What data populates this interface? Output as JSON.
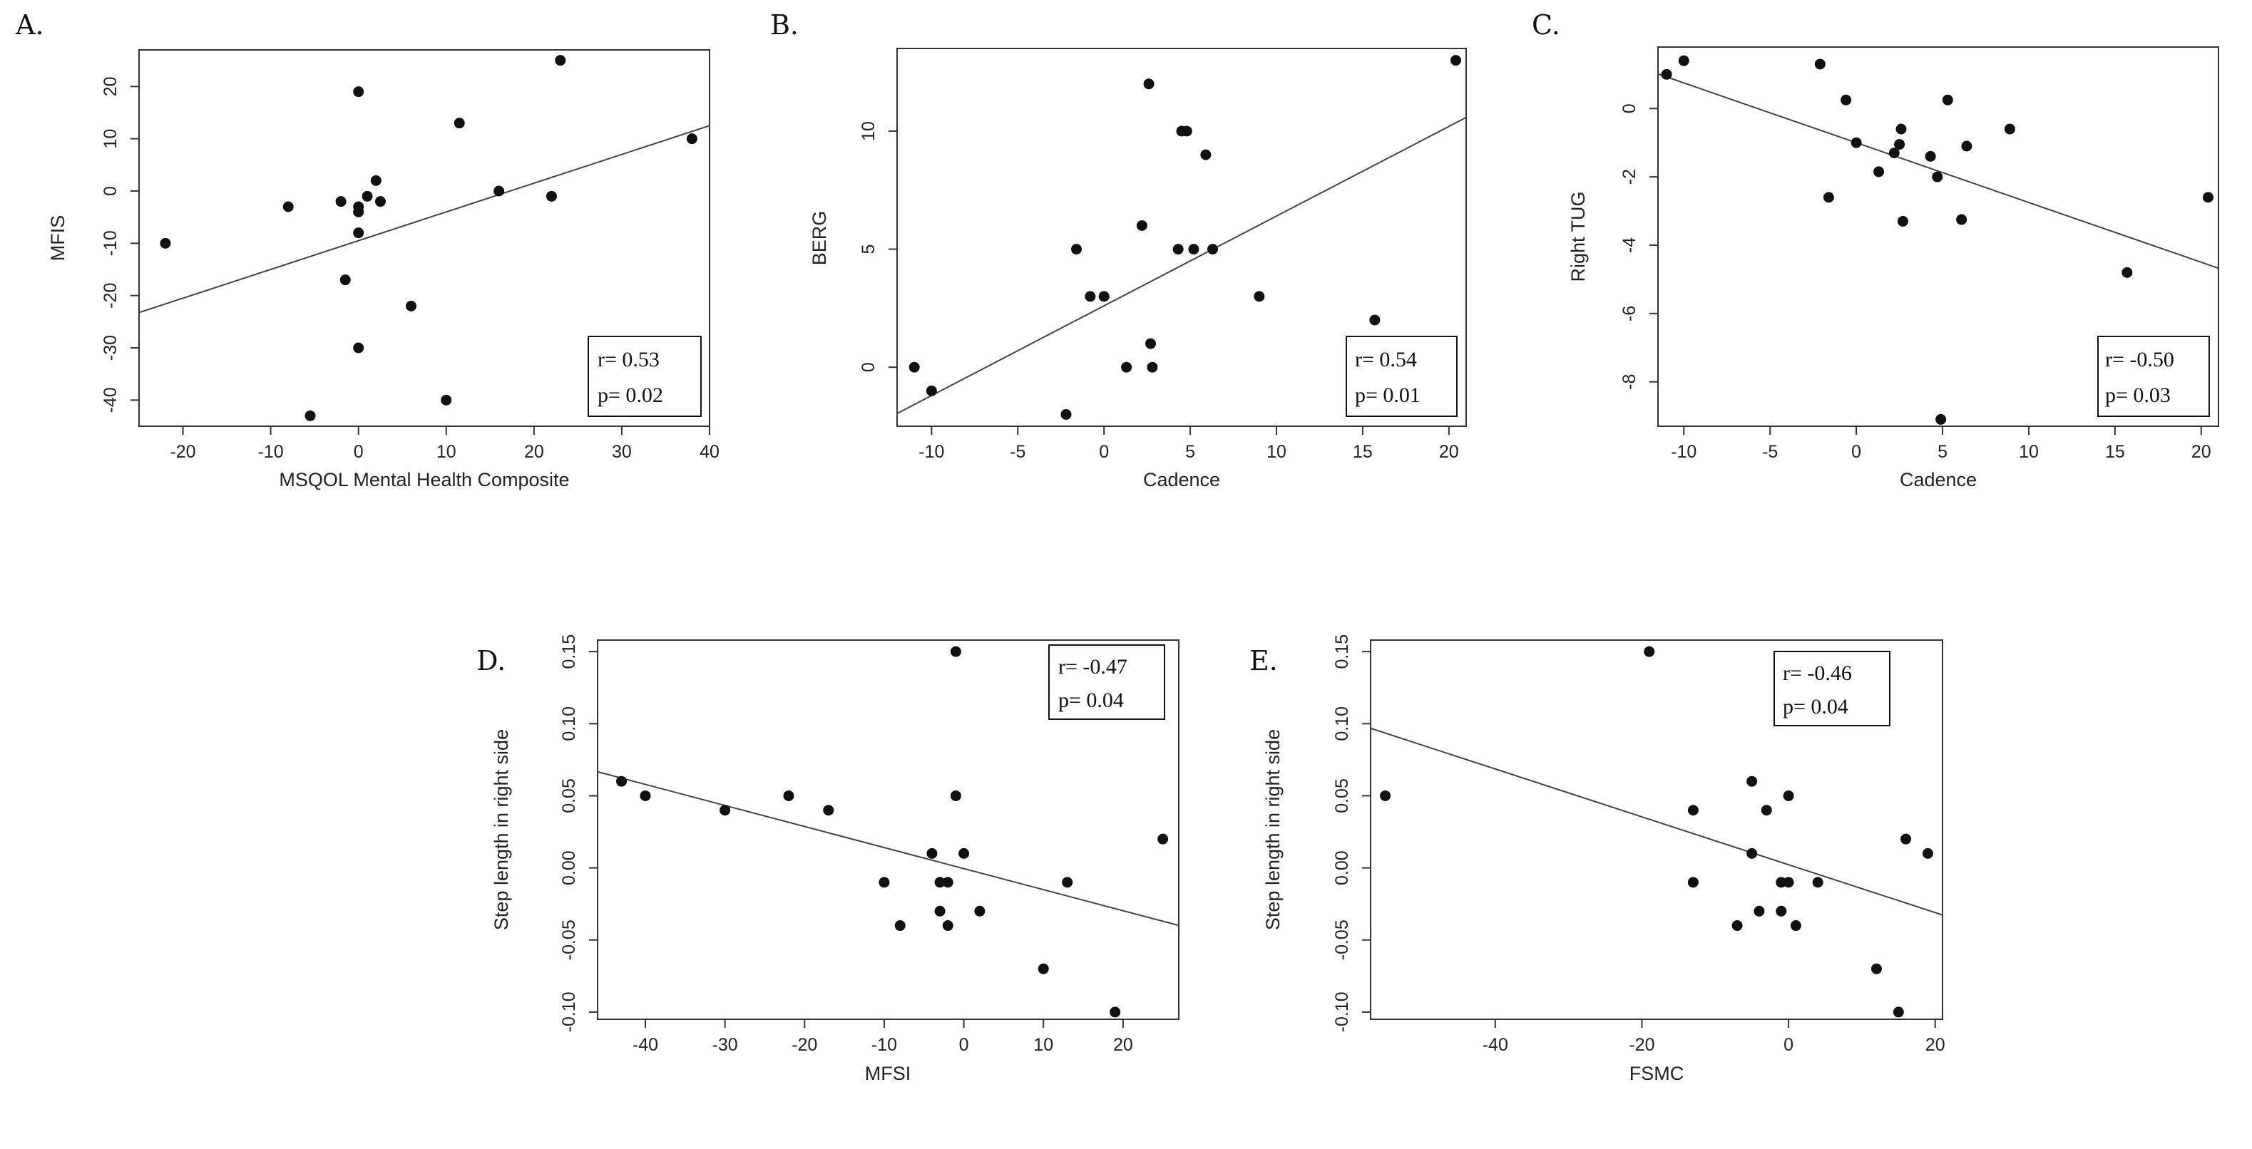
{
  "chart_data": [
    {
      "letter": "A.",
      "type": "scatter",
      "xlabel": "MSQOL Mental Health Composite",
      "ylabel": "MFIS",
      "xlim": [
        -25,
        40
      ],
      "ylim": [
        -45,
        27
      ],
      "xticks": [
        -20,
        -10,
        0,
        10,
        20,
        30,
        40
      ],
      "yticks": [
        -40,
        -30,
        -20,
        -10,
        0,
        10,
        20
      ],
      "points": [
        [
          -22,
          -10
        ],
        [
          -8,
          -3
        ],
        [
          -2,
          -2
        ],
        [
          -1.5,
          -17
        ],
        [
          0,
          19
        ],
        [
          0,
          -3
        ],
        [
          0,
          -4
        ],
        [
          0,
          -8
        ],
        [
          0,
          -30
        ],
        [
          1,
          -1
        ],
        [
          2,
          2
        ],
        [
          2.5,
          -2
        ],
        [
          6,
          -22
        ],
        [
          10,
          -40
        ],
        [
          11.5,
          13
        ],
        [
          16,
          0
        ],
        [
          22,
          -1
        ],
        [
          23,
          25
        ],
        [
          38,
          10
        ],
        [
          -5.5,
          -43
        ]
      ],
      "fit": {
        "intercept": -9.5,
        "slope": 0.55
      },
      "stats": {
        "r": "r= 0.53",
        "p": "p= 0.02"
      },
      "legend": "bottom-right"
    },
    {
      "letter": "B.",
      "type": "scatter",
      "xlabel": "Cadence",
      "ylabel": "BERG",
      "xlim": [
        -12,
        21
      ],
      "ylim": [
        -2.5,
        13.5
      ],
      "xticks": [
        -10,
        -5,
        0,
        5,
        10,
        15,
        20
      ],
      "yticks": [
        0,
        5,
        10
      ],
      "points": [
        [
          -11,
          0
        ],
        [
          -10,
          -1
        ],
        [
          -2.2,
          -2
        ],
        [
          -1.6,
          5
        ],
        [
          -0.8,
          3
        ],
        [
          0,
          3
        ],
        [
          1.3,
          0
        ],
        [
          2.2,
          6
        ],
        [
          2.6,
          12
        ],
        [
          2.7,
          1
        ],
        [
          2.8,
          0
        ],
        [
          4.3,
          5
        ],
        [
          4.5,
          10
        ],
        [
          4.8,
          10
        ],
        [
          5.2,
          5
        ],
        [
          5.9,
          9
        ],
        [
          6.3,
          5
        ],
        [
          9,
          3
        ],
        [
          15.7,
          2
        ],
        [
          20.4,
          13
        ]
      ],
      "fit": {
        "intercept": 2.6,
        "slope": 0.38
      },
      "stats": {
        "r": "r= 0.54",
        "p": "p= 0.01"
      },
      "legend": "bottom-right"
    },
    {
      "letter": "C.",
      "type": "scatter",
      "xlabel": "Cadence",
      "ylabel": "Right TUG",
      "xlim": [
        -11.5,
        21
      ],
      "ylim": [
        -9.3,
        1.8
      ],
      "xticks": [
        -10,
        -5,
        0,
        5,
        10,
        15,
        20
      ],
      "yticks": [
        -8,
        -6,
        -4,
        -2,
        0
      ],
      "points": [
        [
          -11,
          1
        ],
        [
          -10,
          1.4
        ],
        [
          -2.1,
          1.3
        ],
        [
          -1.6,
          -2.6
        ],
        [
          -0.6,
          0.25
        ],
        [
          0,
          -1
        ],
        [
          1.3,
          -1.85
        ],
        [
          2.2,
          -1.3
        ],
        [
          2.5,
          -1.05
        ],
        [
          2.6,
          -0.6
        ],
        [
          2.7,
          -3.3
        ],
        [
          4.3,
          -1.4
        ],
        [
          4.7,
          -2
        ],
        [
          4.9,
          -9.1
        ],
        [
          5.3,
          0.25
        ],
        [
          6.1,
          -3.25
        ],
        [
          6.4,
          -1.1
        ],
        [
          8.9,
          -0.6
        ],
        [
          15.7,
          -4.8
        ],
        [
          20.4,
          -2.6
        ]
      ],
      "fit": {
        "intercept": -1.0,
        "slope": -0.175
      },
      "stats": {
        "r": "r= -0.50",
        "p": "p= 0.03"
      },
      "legend": "bottom-right"
    },
    {
      "letter": "D.",
      "type": "scatter",
      "xlabel": "MFSI",
      "ylabel": "Step length in right side",
      "xlim": [
        -46,
        27
      ],
      "ylim": [
        -0.105,
        0.158
      ],
      "xticks": [
        -40,
        -30,
        -20,
        -10,
        0,
        10,
        20
      ],
      "yticks": [
        -0.1,
        -0.05,
        0.0,
        0.05,
        0.1,
        0.15
      ],
      "ytickLabels": [
        "-0.10",
        "-0.05",
        "0.00",
        "0.05",
        "0.10",
        "0.15"
      ],
      "points": [
        [
          -43,
          0.06
        ],
        [
          -40,
          0.05
        ],
        [
          -30,
          0.04
        ],
        [
          -22,
          0.05
        ],
        [
          -17,
          0.04
        ],
        [
          -10,
          -0.01
        ],
        [
          -8,
          -0.04
        ],
        [
          -4,
          0.01
        ],
        [
          -3,
          -0.03
        ],
        [
          -3,
          -0.01
        ],
        [
          -2,
          -0.01
        ],
        [
          -2,
          -0.04
        ],
        [
          -1,
          0.15
        ],
        [
          -1,
          0.05
        ],
        [
          0,
          0.01
        ],
        [
          2,
          -0.03
        ],
        [
          10,
          -0.07
        ],
        [
          13,
          -0.01
        ],
        [
          19,
          -0.1
        ],
        [
          25,
          0.02
        ]
      ],
      "fit": {
        "intercept": -0.0005,
        "slope": -0.00146
      },
      "stats": {
        "r": "r= -0.47",
        "p": "p= 0.04"
      },
      "legend": "top-right"
    },
    {
      "letter": "E.",
      "type": "scatter",
      "xlabel": "FSMC",
      "ylabel": "Step length in right side",
      "xlim": [
        -57,
        21
      ],
      "ylim": [
        -0.105,
        0.158
      ],
      "xticks": [
        -40,
        -20,
        0,
        20
      ],
      "yticks": [
        -0.1,
        -0.05,
        0.0,
        0.05,
        0.1,
        0.15
      ],
      "ytickLabels": [
        "-0.10",
        "-0.05",
        "0.00",
        "0.05",
        "0.10",
        "0.15"
      ],
      "points": [
        [
          -55,
          0.05
        ],
        [
          -19,
          0.15
        ],
        [
          -13,
          0.04
        ],
        [
          -13,
          -0.01
        ],
        [
          -7,
          -0.04
        ],
        [
          -5,
          0.06
        ],
        [
          -5,
          0.01
        ],
        [
          -4,
          -0.03
        ],
        [
          -3,
          0.04
        ],
        [
          -1,
          -0.03
        ],
        [
          -1,
          -0.01
        ],
        [
          0,
          -0.01
        ],
        [
          0,
          0.05
        ],
        [
          1,
          -0.04
        ],
        [
          4,
          -0.01
        ],
        [
          12,
          -0.07
        ],
        [
          15,
          -0.1
        ],
        [
          16,
          0.02
        ],
        [
          19,
          0.01
        ]
      ],
      "fit": {
        "intercept": 0.0022,
        "slope": -0.00166
      },
      "stats": {
        "r": "r= -0.46",
        "p": "p= 0.04"
      },
      "legend": "top-right"
    }
  ]
}
